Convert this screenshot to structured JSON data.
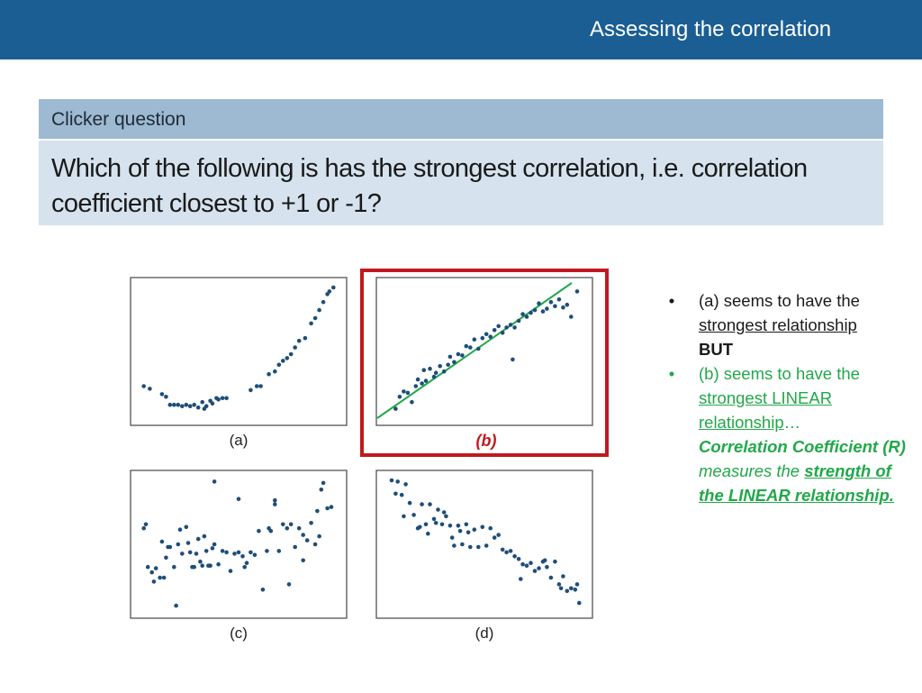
{
  "header": {
    "title": "Assessing the correlation"
  },
  "question": {
    "label": "Clicker question",
    "text": "Which of the following is has the strongest correlation, i.e. correlation coefficient closest to +1 or -1?"
  },
  "notes": {
    "bullet_1": {
      "p1": "(a) seems to have the ",
      "p2": "strongest relationship",
      "p3": "BUT"
    },
    "bullet_2": {
      "p1": "(b) seems to have the ",
      "p2": "strongest LINEAR relationship",
      "p3": "…",
      "p4": "Correlation Coefficient (R)",
      "p5": " measures the ",
      "p6": "strength of the LINEAR relationship."
    }
  },
  "colors": {
    "header": "#1b5e94",
    "point": "#1f4e79",
    "fit_line": "#22a84a",
    "highlight": "#c0191e"
  },
  "chart_data": [
    {
      "type": "scatter",
      "label": "(a)",
      "xlim": [
        0,
        10
      ],
      "ylim": [
        0,
        10
      ],
      "x": [
        0.3,
        0.6,
        1.2,
        1.4,
        1.6,
        1.8,
        2.0,
        2.2,
        2.4,
        2.6,
        2.8,
        3.0,
        3.2,
        3.4,
        3.6,
        3.3,
        3.7,
        3.9,
        4.0,
        4.2,
        4.4,
        5.6,
        5.9,
        6.1,
        6.5,
        6.8,
        7.0,
        7.2,
        7.4,
        7.6,
        7.8,
        8.0,
        8.3,
        8.6,
        8.8,
        9.0,
        9.2,
        9.4,
        9.5,
        9.7
      ],
      "y": [
        2.4,
        2.2,
        1.8,
        1.6,
        1.0,
        1.0,
        1.0,
        0.9,
        1.0,
        0.9,
        1.0,
        0.8,
        1.2,
        0.9,
        1.3,
        0.7,
        1.1,
        1.5,
        1.4,
        1.5,
        1.5,
        2.1,
        2.4,
        2.4,
        3.3,
        3.5,
        4.0,
        4.3,
        4.5,
        4.8,
        5.3,
        5.8,
        6.0,
        7.1,
        7.5,
        8.1,
        8.7,
        9.3,
        9.5,
        9.8
      ]
    },
    {
      "type": "scatter",
      "label": "(b)",
      "xlim": [
        0,
        10
      ],
      "ylim": [
        0,
        10
      ],
      "x": [
        0.6,
        0.8,
        1.0,
        1.2,
        1.4,
        1.6,
        1.7,
        1.9,
        2.0,
        2.1,
        2.3,
        2.5,
        2.6,
        2.8,
        3.0,
        3.2,
        3.3,
        3.5,
        3.7,
        3.9,
        4.1,
        4.3,
        4.5,
        4.7,
        4.9,
        5.1,
        5.3,
        5.5,
        5.7,
        5.9,
        6.1,
        6.3,
        6.5,
        6.7,
        6.9,
        7.1,
        7.3,
        7.5,
        7.7,
        7.9,
        8.1,
        8.3,
        8.5,
        8.7,
        8.9,
        9.1,
        9.3,
        9.6,
        6.4
      ],
      "y": [
        0.7,
        1.6,
        2.0,
        1.9,
        1.2,
        2.4,
        2.9,
        2.6,
        3.6,
        2.8,
        3.7,
        3.1,
        3.4,
        3.9,
        3.5,
        4.0,
        4.6,
        4.2,
        4.8,
        4.7,
        5.4,
        5.3,
        5.9,
        5.2,
        6.0,
        6.3,
        6.1,
        6.6,
        6.9,
        6.4,
        6.8,
        7.0,
        6.8,
        7.3,
        7.8,
        7.6,
        7.9,
        8.1,
        8.6,
        8.0,
        8.2,
        8.7,
        8.4,
        8.9,
        8.3,
        8.5,
        7.6,
        9.5,
        4.4
      ]
    },
    {
      "type": "scatter",
      "label": "(c)",
      "xlim": [
        0,
        10
      ],
      "ylim": [
        0,
        10
      ],
      "x": [
        0.3,
        0.5,
        0.7,
        0.9,
        1.1,
        1.2,
        1.4,
        1.6,
        1.8,
        2.0,
        2.2,
        2.4,
        2.6,
        2.8,
        3.0,
        3.2,
        3.4,
        3.6,
        3.8,
        4.0,
        0.4,
        0.8,
        1.3,
        1.5,
        2.1,
        2.5,
        2.7,
        2.9,
        3.1,
        3.3,
        3.5,
        3.7,
        4.2,
        4.4,
        4.6,
        4.8,
        5.0,
        5.2,
        5.4,
        5.6,
        5.8,
        6.0,
        6.2,
        6.4,
        6.6,
        6.8,
        7.0,
        7.2,
        7.4,
        7.6,
        7.8,
        8.0,
        8.2,
        8.4,
        8.6,
        8.8,
        9.0,
        9.2,
        9.4,
        9.6,
        5.0,
        5.3,
        6.8,
        7.5,
        8.9,
        1.9,
        3.8,
        6.5,
        8.2,
        9.1
      ],
      "y": [
        6.2,
        3.3,
        2.9,
        3.2,
        2.5,
        5.2,
        4.0,
        4.8,
        3.3,
        5.0,
        4.3,
        6.3,
        4.4,
        3.3,
        5.4,
        3.4,
        4.5,
        3.4,
        5.0,
        3.5,
        6.5,
        2.2,
        2.5,
        4.8,
        6.1,
        5.1,
        3.3,
        4.3,
        3.7,
        5.6,
        3.4,
        4.7,
        4.5,
        4.4,
        3.0,
        4.3,
        4.4,
        4.1,
        3.6,
        4.4,
        4.2,
        6.0,
        1.6,
        4.5,
        6.0,
        8.3,
        4.5,
        6.5,
        6.2,
        6.5,
        4.8,
        6.2,
        3.8,
        5.3,
        6.6,
        5.0,
        5.6,
        9.6,
        7.7,
        7.8,
        8.4,
        3.3,
        8.0,
        2.0,
        7.5,
        0.4,
        9.7,
        6.2,
        5.7,
        9.1
      ]
    },
    {
      "type": "scatter",
      "label": "(d)",
      "xlim": [
        0,
        10
      ],
      "ylim": [
        0,
        10
      ],
      "x": [
        0.4,
        0.7,
        0.9,
        1.1,
        0.6,
        1.3,
        1.5,
        1.7,
        1.9,
        2.1,
        2.3,
        2.5,
        2.7,
        2.9,
        3.1,
        3.3,
        3.5,
        3.7,
        3.9,
        4.1,
        4.3,
        4.5,
        4.7,
        4.9,
        5.1,
        5.3,
        5.5,
        5.7,
        5.9,
        6.1,
        6.3,
        6.5,
        6.7,
        6.9,
        7.1,
        7.3,
        7.5,
        7.7,
        7.9,
        8.1,
        8.3,
        8.5,
        8.7,
        8.9,
        9.1,
        9.3,
        9.5,
        9.7,
        1.0,
        1.8,
        2.2,
        2.6,
        3.0,
        3.4,
        3.8,
        4.2,
        8.0,
        8.8,
        9.6,
        6.8
      ],
      "y": [
        9.8,
        9.7,
        8.7,
        9.5,
        8.8,
        8.1,
        7.2,
        6.2,
        8.0,
        6.5,
        8.0,
        6.9,
        7.6,
        6.5,
        7.1,
        6.4,
        4.9,
        6.4,
        5.0,
        6.5,
        4.8,
        6.1,
        4.8,
        6.3,
        4.9,
        6.2,
        5.5,
        5.7,
        4.6,
        4.4,
        4.5,
        4.1,
        3.9,
        3.5,
        3.4,
        3.6,
        3.0,
        3.2,
        3.7,
        3.3,
        2.5,
        3.7,
        2.0,
        2.6,
        1.5,
        1.7,
        1.6,
        0.6,
        7.1,
        6.3,
        5.8,
        6.6,
        7.4,
        5.5,
        6.0,
        5.9,
        3.8,
        1.7,
        2.0,
        2.4
      ]
    }
  ]
}
